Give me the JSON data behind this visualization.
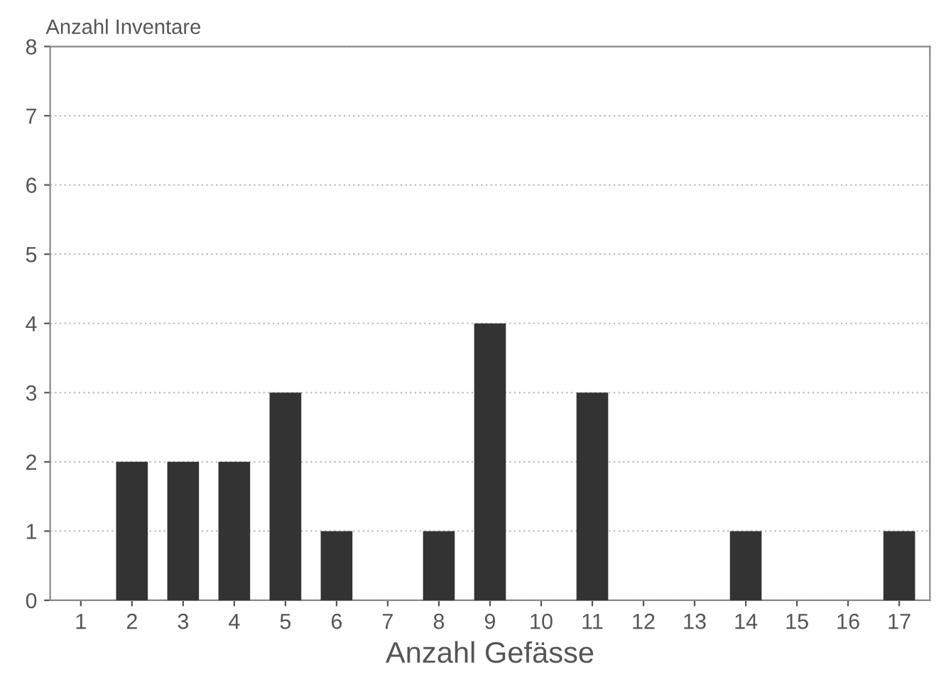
{
  "chart_data": {
    "type": "bar",
    "xlabel": "Anzahl Gefässe",
    "ylabel": "Anzahl Inventare",
    "categories": [
      "1",
      "2",
      "3",
      "4",
      "5",
      "6",
      "7",
      "8",
      "9",
      "10",
      "11",
      "12",
      "13",
      "14",
      "15",
      "16",
      "17"
    ],
    "values": [
      0,
      2,
      2,
      2,
      3,
      1,
      0,
      1,
      4,
      0,
      3,
      0,
      0,
      1,
      0,
      0,
      1
    ],
    "color": "#333333",
    "ylim": [
      0,
      8
    ],
    "yticks": [
      0,
      1,
      2,
      3,
      4,
      5,
      6,
      7,
      8
    ],
    "grid": "y",
    "legend": false
  }
}
